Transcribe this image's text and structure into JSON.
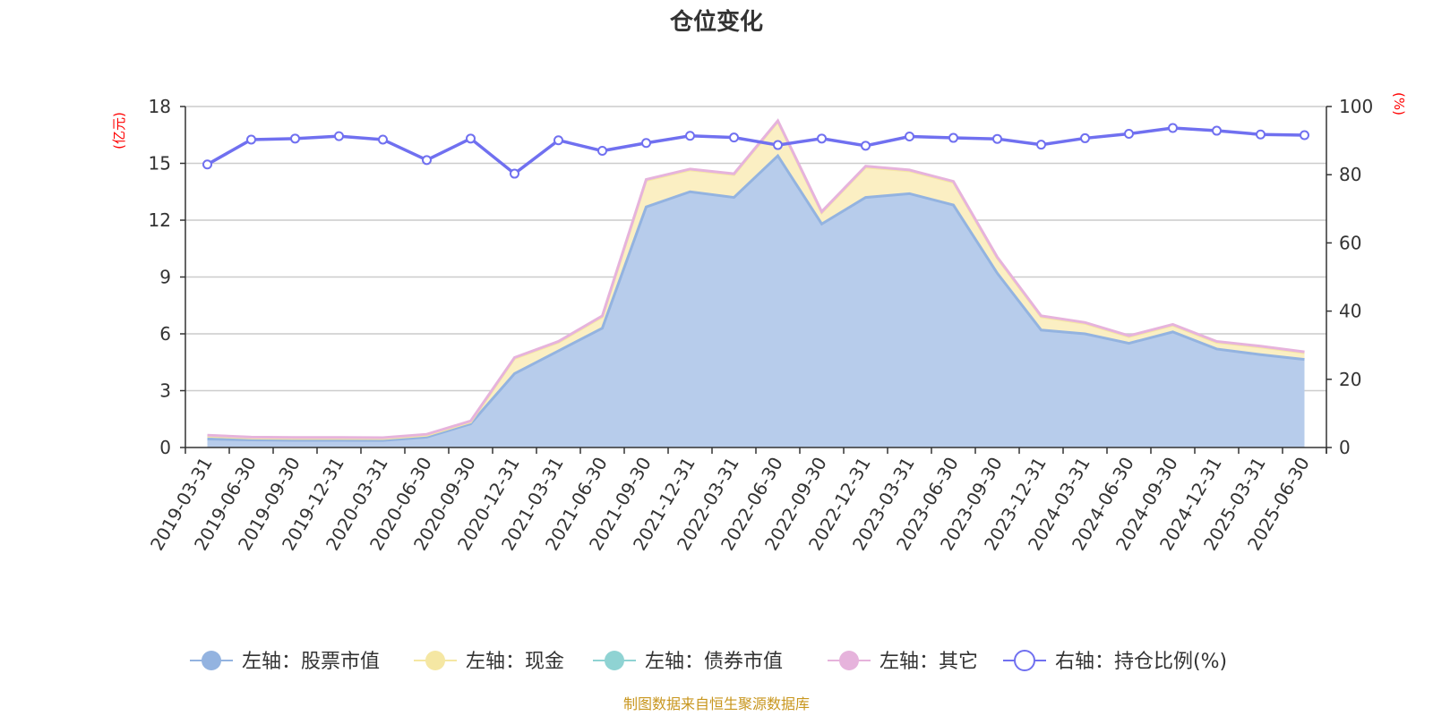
{
  "chart_data": {
    "type": "area",
    "title": "仓位变化",
    "left_axis_unit": "(亿元)",
    "right_axis_unit": "(%)",
    "left_ticks": [
      "0",
      "3",
      "6",
      "9",
      "12",
      "15",
      "18"
    ],
    "right_ticks": [
      "0",
      "20",
      "40",
      "60",
      "80",
      "100"
    ],
    "ylim_left": [
      0,
      18
    ],
    "ylim_right": [
      0,
      100
    ],
    "grid": true,
    "legend_position": "bottom",
    "x_labels": [
      "2019-03-31",
      "2019-06-30",
      "2019-09-30",
      "2019-12-31",
      "2020-03-31",
      "2020-06-30",
      "2020-09-30",
      "2020-12-31",
      "2021-03-31",
      "2021-06-30",
      "2021-09-30",
      "2021-12-31",
      "2022-03-31",
      "2022-06-30",
      "2022-09-30",
      "2022-12-31",
      "2023-03-31",
      "2023-06-30",
      "2023-09-30",
      "2023-12-31",
      "2024-03-31",
      "2024-06-30",
      "2024-09-30",
      "2024-12-31",
      "2025-03-31",
      "2025-06-30"
    ],
    "series": [
      {
        "name": "左轴：股票市值",
        "axis": "left",
        "stack": "total",
        "values": [
          0.45,
          0.4,
          0.38,
          0.38,
          0.37,
          0.55,
          1.25,
          3.9,
          5.1,
          6.3,
          12.7,
          13.5,
          13.2,
          15.4,
          11.8,
          13.2,
          13.4,
          12.8,
          9.2,
          6.2,
          6.0,
          5.5,
          6.1,
          5.2,
          4.9,
          4.65
        ]
      },
      {
        "name": "左轴：现金",
        "axis": "left",
        "stack": "total",
        "values": [
          0.15,
          0.1,
          0.1,
          0.1,
          0.1,
          0.1,
          0.1,
          0.8,
          0.45,
          0.6,
          1.4,
          1.15,
          1.2,
          1.8,
          0.6,
          1.6,
          1.2,
          1.2,
          0.8,
          0.7,
          0.55,
          0.35,
          0.35,
          0.35,
          0.4,
          0.35
        ]
      },
      {
        "name": "左轴：债券市值",
        "axis": "left",
        "stack": "total",
        "values": [
          0,
          0,
          0,
          0,
          0,
          0,
          0,
          0,
          0,
          0,
          0,
          0,
          0,
          0,
          0,
          0,
          0,
          0,
          0,
          0,
          0,
          0,
          0,
          0,
          0,
          0
        ]
      },
      {
        "name": "左轴：其它",
        "axis": "left",
        "stack": "total",
        "values": [
          0.05,
          0.05,
          0.05,
          0.05,
          0.05,
          0.05,
          0.05,
          0.05,
          0.05,
          0.05,
          0.05,
          0.05,
          0.05,
          0.05,
          0.05,
          0.05,
          0.05,
          0.05,
          0.05,
          0.05,
          0.05,
          0.05,
          0.05,
          0.05,
          0.05,
          0.05
        ]
      },
      {
        "name": "右轴：持仓比例(%)",
        "axis": "right",
        "values": [
          83,
          90.3,
          90.6,
          91.3,
          90.3,
          84.3,
          90.6,
          80.3,
          90.1,
          87,
          89.3,
          91.4,
          90.9,
          88.7,
          90.6,
          88.5,
          91.2,
          90.8,
          90.5,
          88.8,
          90.7,
          92,
          93.7,
          92.9,
          91.8,
          91.6
        ]
      }
    ],
    "colors": {
      "stock": "#93b3e0",
      "stock_fill": "#b7cceb",
      "cash": "#f5e7a3",
      "cash_fill": "#fbefc3",
      "bond": "#8fd3d3",
      "other": "#e6b3dc",
      "ratio": "#7070f0",
      "grid": "#cccccc",
      "axis": "#333333"
    }
  },
  "footer": {
    "source_text": "制图数据来自恒生聚源数据库"
  }
}
